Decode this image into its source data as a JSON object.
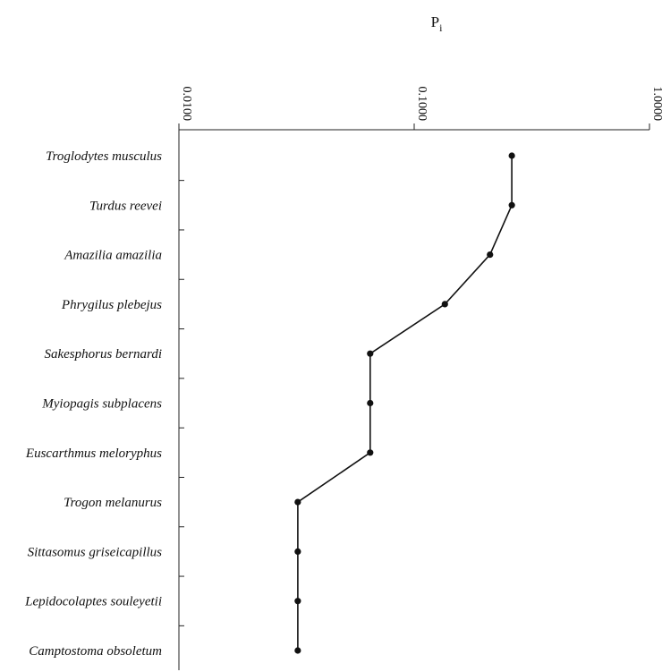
{
  "chart_data": {
    "type": "line",
    "title": "",
    "xlabel": "P",
    "xlabel_subscript": "i",
    "xscale": "log",
    "xlim": [
      0.01,
      1.0
    ],
    "x_ticks": [
      0.01,
      0.1,
      1.0
    ],
    "x_tick_labels": [
      "0.0100",
      "0.1000",
      "1.0000"
    ],
    "axis_position": "top",
    "grid": false,
    "categories": [
      "Troglodytes musculus",
      "Turdus reevei",
      "Amazilia amazilia",
      "Phrygilus plebejus",
      "Sakesphorus bernardi",
      "Myiopagis subplacens",
      "Euscarthmus meloryphus",
      "Trogon melanurus",
      "Sittasomus griseicapillus",
      "Lepidocolaptes souleyetii",
      "Camptostoma obsoletum"
    ],
    "values": [
      0.26,
      0.26,
      0.21,
      0.135,
      0.065,
      0.065,
      0.065,
      0.032,
      0.032,
      0.032,
      0.032
    ]
  }
}
